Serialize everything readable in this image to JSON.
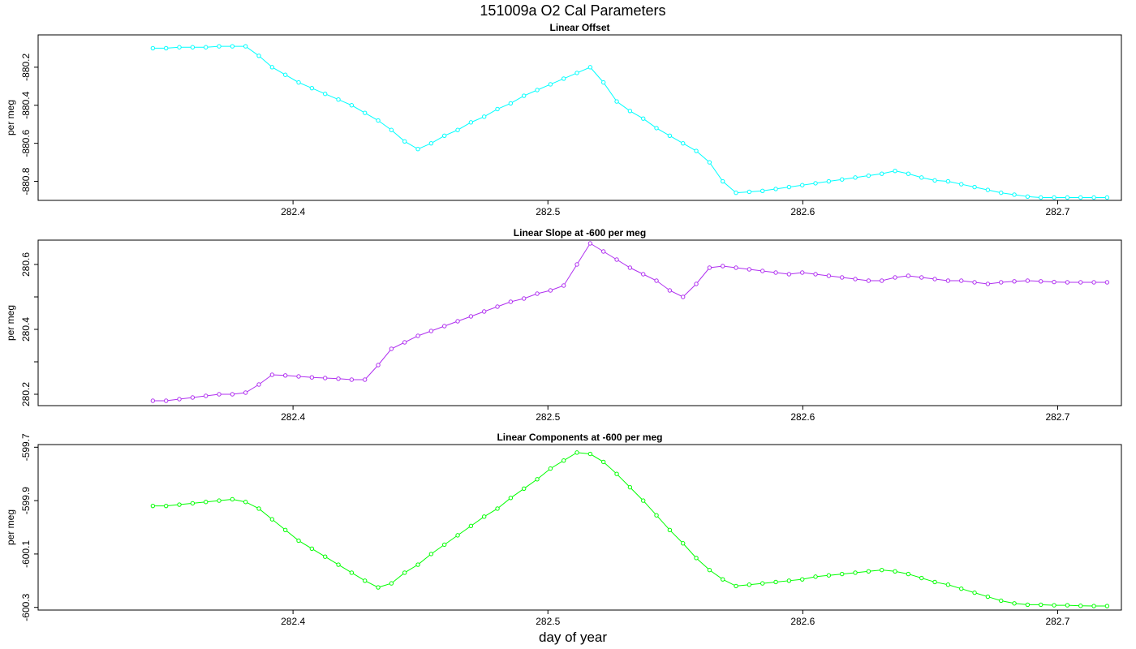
{
  "title": "151009a   O2 Cal Parameters",
  "xlabel": "day of year",
  "chart_data": [
    {
      "type": "line",
      "title": "Linear Offset",
      "ylabel": "per meg",
      "color": "#00FFFF",
      "xlim": [
        282.3,
        282.725
      ],
      "ylim": [
        -880.9,
        -880.03
      ],
      "xticks": [
        282.4,
        282.5,
        282.6,
        282.7
      ],
      "xtick_labels": [
        "282.4",
        "282.5",
        "282.6",
        "282.7"
      ],
      "yticks": [
        -880.2,
        -880.4,
        -880.6,
        -880.8
      ],
      "ytick_labels": [
        "-880.2",
        "-880.4",
        "-880.6",
        "-880.8"
      ],
      "grid": false,
      "x": [
        282.345,
        282.3502,
        282.3554,
        282.3606,
        282.3658,
        282.371,
        282.3762,
        282.3814,
        282.3866,
        282.3918,
        282.397,
        282.4022,
        282.4074,
        282.4126,
        282.4178,
        282.423,
        282.4282,
        282.4334,
        282.4386,
        282.4438,
        282.449,
        282.4542,
        282.4594,
        282.4646,
        282.4698,
        282.475,
        282.4802,
        282.4854,
        282.4906,
        282.4958,
        282.501,
        282.5062,
        282.5114,
        282.5166,
        282.5218,
        282.527,
        282.5322,
        282.5374,
        282.5426,
        282.5478,
        282.553,
        282.5582,
        282.5634,
        282.5686,
        282.5738,
        282.579,
        282.5842,
        282.5894,
        282.5946,
        282.5998,
        282.605,
        282.6102,
        282.6154,
        282.6206,
        282.6258,
        282.631,
        282.6362,
        282.6414,
        282.6466,
        282.6518,
        282.657,
        282.6622,
        282.6674,
        282.6726,
        282.6778,
        282.683,
        282.6882,
        282.6934,
        282.6986,
        282.7038,
        282.709,
        282.7142,
        282.7194
      ],
      "y": [
        -880.1,
        -880.1,
        -880.095,
        -880.095,
        -880.095,
        -880.09,
        -880.09,
        -880.09,
        -880.14,
        -880.2,
        -880.24,
        -880.28,
        -880.31,
        -880.34,
        -880.37,
        -880.4,
        -880.44,
        -880.48,
        -880.53,
        -880.59,
        -880.63,
        -880.6,
        -880.56,
        -880.53,
        -880.49,
        -880.46,
        -880.42,
        -880.39,
        -880.35,
        -880.32,
        -880.29,
        -880.26,
        -880.23,
        -880.2,
        -880.28,
        -880.38,
        -880.43,
        -880.47,
        -880.52,
        -880.56,
        -880.6,
        -880.64,
        -880.7,
        -880.8,
        -880.86,
        -880.855,
        -880.85,
        -880.84,
        -880.83,
        -880.82,
        -880.81,
        -880.8,
        -880.79,
        -880.78,
        -880.77,
        -880.76,
        -880.745,
        -880.76,
        -880.78,
        -880.795,
        -880.8,
        -880.815,
        -880.83,
        -880.845,
        -880.86,
        -880.87,
        -880.88,
        -880.885,
        -880.885,
        -880.885,
        -880.885,
        -880.885,
        -880.885
      ]
    },
    {
      "type": "line",
      "title": "Linear Slope at -600 per meg",
      "ylabel": "per meg",
      "color": "#B030F0",
      "xlim": [
        282.3,
        282.725
      ],
      "ylim": [
        280.165,
        280.675
      ],
      "xticks": [
        282.4,
        282.5,
        282.6,
        282.7
      ],
      "xtick_labels": [
        "282.4",
        "282.5",
        "282.6",
        "282.7"
      ],
      "yticks": [
        280.2,
        280.4,
        280.6
      ],
      "ytick_labels": [
        "280.2",
        "280.4",
        "280.6"
      ],
      "yticks_minor": [
        280.3,
        280.5
      ],
      "grid": false,
      "x": [
        282.345,
        282.3502,
        282.3554,
        282.3606,
        282.3658,
        282.371,
        282.3762,
        282.3814,
        282.3866,
        282.3918,
        282.397,
        282.4022,
        282.4074,
        282.4126,
        282.4178,
        282.423,
        282.4282,
        282.4334,
        282.4386,
        282.4438,
        282.449,
        282.4542,
        282.4594,
        282.4646,
        282.4698,
        282.475,
        282.4802,
        282.4854,
        282.4906,
        282.4958,
        282.501,
        282.5062,
        282.5114,
        282.5166,
        282.5218,
        282.527,
        282.5322,
        282.5374,
        282.5426,
        282.5478,
        282.553,
        282.5582,
        282.5634,
        282.5686,
        282.5738,
        282.579,
        282.5842,
        282.5894,
        282.5946,
        282.5998,
        282.605,
        282.6102,
        282.6154,
        282.6206,
        282.6258,
        282.631,
        282.6362,
        282.6414,
        282.6466,
        282.6518,
        282.657,
        282.6622,
        282.6674,
        282.6726,
        282.6778,
        282.683,
        282.6882,
        282.6934,
        282.6986,
        282.7038,
        282.709,
        282.7142,
        282.7194
      ],
      "y": [
        280.18,
        280.18,
        280.185,
        280.19,
        280.195,
        280.2,
        280.2,
        280.205,
        280.23,
        280.26,
        280.258,
        280.255,
        280.252,
        280.25,
        280.248,
        280.245,
        280.245,
        280.29,
        280.34,
        280.36,
        280.38,
        280.395,
        280.41,
        280.425,
        280.44,
        280.455,
        280.47,
        280.485,
        280.495,
        280.51,
        280.52,
        280.535,
        280.6,
        280.665,
        280.64,
        280.615,
        280.59,
        280.57,
        280.55,
        280.52,
        280.5,
        280.54,
        280.59,
        280.595,
        280.59,
        280.585,
        280.58,
        280.575,
        280.57,
        280.575,
        280.57,
        280.565,
        280.56,
        280.555,
        280.55,
        280.55,
        280.56,
        280.565,
        280.56,
        280.555,
        280.55,
        280.55,
        280.545,
        280.54,
        280.545,
        280.548,
        280.55,
        280.548,
        280.546,
        280.545,
        280.545,
        280.545,
        280.545
      ]
    },
    {
      "type": "line",
      "title": "Linear Components at -600 per meg",
      "ylabel": "per meg",
      "color": "#00FF00",
      "xlim": [
        282.3,
        282.725
      ],
      "ylim": [
        -600.31,
        -599.69
      ],
      "xticks": [
        282.4,
        282.5,
        282.6,
        282.7
      ],
      "xtick_labels": [
        "282.4",
        "282.5",
        "282.6",
        "282.7"
      ],
      "yticks": [
        -599.7,
        -599.9,
        -600.1,
        -600.3
      ],
      "ytick_labels": [
        "-599.7",
        "-599.9",
        "-600.1",
        "-600.3"
      ],
      "grid": false,
      "x": [
        282.345,
        282.3502,
        282.3554,
        282.3606,
        282.3658,
        282.371,
        282.3762,
        282.3814,
        282.3866,
        282.3918,
        282.397,
        282.4022,
        282.4074,
        282.4126,
        282.4178,
        282.423,
        282.4282,
        282.4334,
        282.4386,
        282.4438,
        282.449,
        282.4542,
        282.4594,
        282.4646,
        282.4698,
        282.475,
        282.4802,
        282.4854,
        282.4906,
        282.4958,
        282.501,
        282.5062,
        282.5114,
        282.5166,
        282.5218,
        282.527,
        282.5322,
        282.5374,
        282.5426,
        282.5478,
        282.553,
        282.5582,
        282.5634,
        282.5686,
        282.5738,
        282.579,
        282.5842,
        282.5894,
        282.5946,
        282.5998,
        282.605,
        282.6102,
        282.6154,
        282.6206,
        282.6258,
        282.631,
        282.6362,
        282.6414,
        282.6466,
        282.6518,
        282.657,
        282.6622,
        282.6674,
        282.6726,
        282.6778,
        282.683,
        282.6882,
        282.6934,
        282.6986,
        282.7038,
        282.709,
        282.7142,
        282.7194
      ],
      "y": [
        -599.92,
        -599.92,
        -599.915,
        -599.91,
        -599.905,
        -599.9,
        -599.895,
        -599.905,
        -599.93,
        -599.97,
        -600.01,
        -600.05,
        -600.08,
        -600.11,
        -600.14,
        -600.17,
        -600.2,
        -600.225,
        -600.21,
        -600.17,
        -600.14,
        -600.1,
        -600.065,
        -600.03,
        -599.995,
        -599.96,
        -599.93,
        -599.89,
        -599.855,
        -599.82,
        -599.78,
        -599.75,
        -599.72,
        -599.725,
        -599.755,
        -599.8,
        -599.85,
        -599.9,
        -599.955,
        -600.01,
        -600.06,
        -600.115,
        -600.16,
        -600.195,
        -600.22,
        -600.215,
        -600.21,
        -600.205,
        -600.2,
        -600.195,
        -600.185,
        -600.18,
        -600.175,
        -600.17,
        -600.165,
        -600.16,
        -600.165,
        -600.175,
        -600.19,
        -600.205,
        -600.215,
        -600.23,
        -600.245,
        -600.26,
        -600.275,
        -600.285,
        -600.29,
        -600.29,
        -600.292,
        -600.292,
        -600.294,
        -600.295,
        -600.295
      ]
    }
  ]
}
